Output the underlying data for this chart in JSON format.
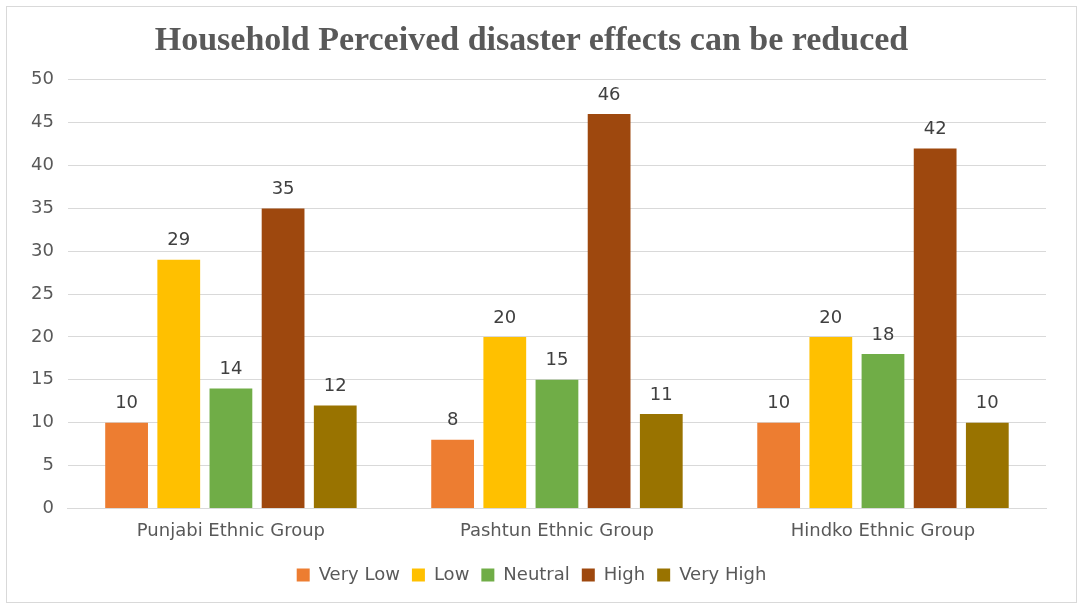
{
  "chart_data": {
    "type": "bar",
    "title": "Household Perceived disaster effects can be reduced",
    "categories": [
      "Punjabi Ethnic Group",
      "Pashtun Ethnic Group",
      "Hindko Ethnic Group"
    ],
    "series": [
      {
        "name": "Very Low",
        "color": "#ed7d31",
        "values": [
          10,
          8,
          10
        ]
      },
      {
        "name": "Low",
        "color": "#ffc000",
        "values": [
          29,
          20,
          20
        ]
      },
      {
        "name": "Neutral",
        "color": "#70ad47",
        "values": [
          14,
          15,
          18
        ]
      },
      {
        "name": "High",
        "color": "#9e480e",
        "values": [
          35,
          46,
          42
        ]
      },
      {
        "name": "Very High",
        "color": "#997300",
        "values": [
          12,
          11,
          10
        ]
      }
    ],
    "ylim": [
      0,
      50
    ],
    "yticks": [
      0,
      5,
      10,
      15,
      20,
      25,
      30,
      35,
      40,
      45,
      50
    ],
    "grid": "y",
    "legend": "bottom",
    "data_labels": true
  }
}
